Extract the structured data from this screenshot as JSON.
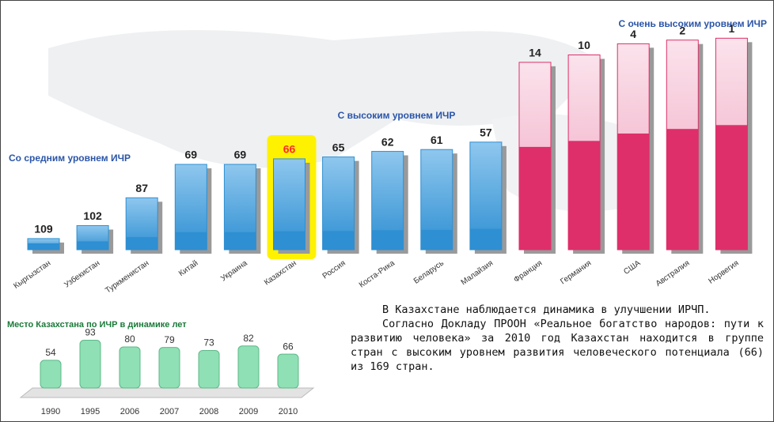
{
  "chart_data": [
    {
      "type": "bar",
      "categories": [
        "Кыргызстан",
        "Узбекистан",
        "Туркменистан",
        "Китай",
        "Украина",
        "Казахстан",
        "Россия",
        "Коста-Рика",
        "Беларусь",
        "Малайзия",
        "Франция",
        "Германия",
        "США",
        "Австралия",
        "Норвегия"
      ],
      "values": [
        109,
        102,
        87,
        69,
        69,
        66,
        65,
        62,
        61,
        57,
        14,
        10,
        4,
        2,
        1
      ],
      "colors": [
        "#2e8fd2",
        "#2e8fd2",
        "#2e8fd2",
        "#2e8fd2",
        "#2e8fd2",
        "#2e8fd2",
        "#2e8fd2",
        "#2e8fd2",
        "#2e8fd2",
        "#2e8fd2",
        "#de2f6a",
        "#de2f6a",
        "#de2f6a",
        "#de2f6a",
        "#de2f6a"
      ],
      "ylim": [
        115,
        0
      ],
      "highlight_index": 5,
      "highlight_color": "#ff2a2a",
      "annotations": [
        "Со средним уровнем ИЧР",
        "С высоким уровнем ИЧР",
        "С очень высоким уровнем ИЧР"
      ]
    },
    {
      "type": "bar",
      "title": "Место Казахстана по ИЧР в динамике лет",
      "categories": [
        "1990",
        "1995",
        "2006",
        "2007",
        "2008",
        "2009",
        "2010"
      ],
      "values": [
        54,
        93,
        80,
        79,
        73,
        82,
        66
      ],
      "color": "#8fe0b4",
      "ylim": [
        0,
        100
      ]
    }
  ],
  "text": {
    "paragraphs": [
      "В Казахстане наблюдается динамика в улучшении ИРЧП.",
      "Согласно Докладу ПРООН «Реальное богатство народов: пути к развитию человека» за 2010 год Казахстан находится в группе стран с высоким уровнем развития человеческого потенциала (66) из 169 стран."
    ]
  }
}
